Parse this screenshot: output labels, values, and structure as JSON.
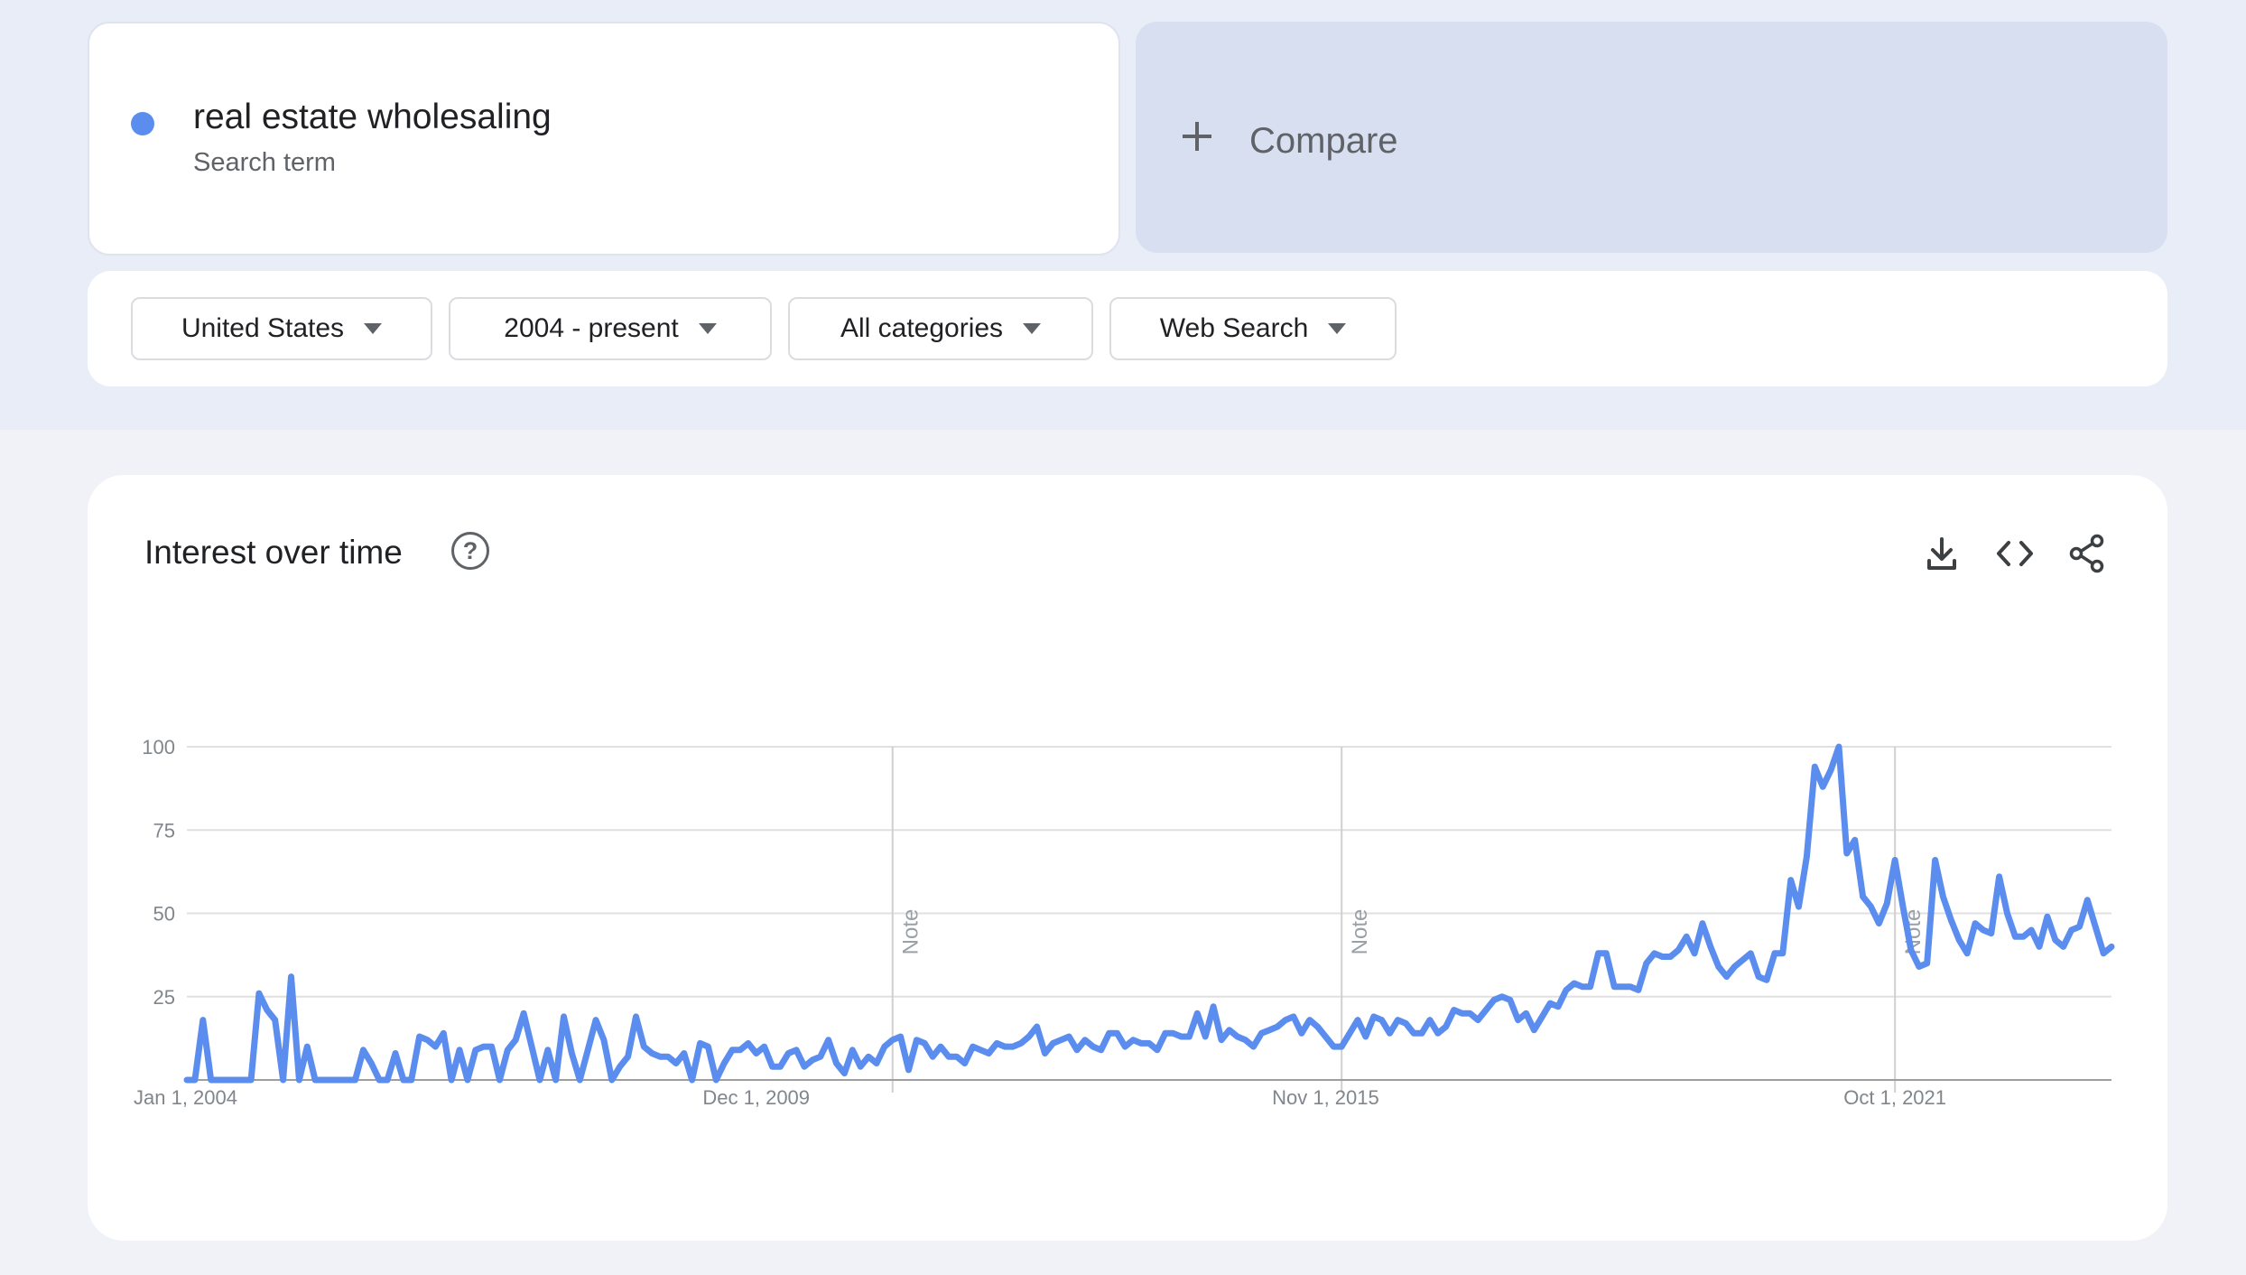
{
  "search_term": {
    "title": "real estate wholesaling",
    "subtitle": "Search term",
    "color": "#5b8def"
  },
  "compare": {
    "label": "Compare",
    "icon": "plus-icon"
  },
  "filters": {
    "region": "United States",
    "time_range": "2004 - present",
    "category": "All categories",
    "property": "Web Search"
  },
  "panel": {
    "title": "Interest over time",
    "icons": [
      "help-icon",
      "download-icon",
      "embed-code-icon",
      "share-icon"
    ]
  },
  "chart_data": {
    "type": "line",
    "x_start": "2004-01",
    "x_ticks": [
      {
        "label": "Jan 1, 2004",
        "month_index": 0
      },
      {
        "label": "Dec 1, 2009",
        "month_index": 71
      },
      {
        "label": "Nov 1, 2015",
        "month_index": 142
      },
      {
        "label": "Oct 1, 2021",
        "month_index": 213
      }
    ],
    "y_ticks": [
      100,
      75,
      50,
      25
    ],
    "ylim": [
      0,
      100
    ],
    "grid": true,
    "notes": [
      {
        "label": "Note",
        "month_index": 88
      },
      {
        "label": "Note",
        "month_index": 144
      },
      {
        "label": "Note",
        "month_index": 213
      }
    ],
    "series": [
      {
        "color": "#5b8def",
        "values": [
          0,
          0,
          18,
          0,
          0,
          0,
          0,
          0,
          0,
          26,
          21,
          18,
          0,
          31,
          0,
          10,
          0,
          0,
          0,
          0,
          0,
          0,
          9,
          5,
          0,
          0,
          8,
          0,
          0,
          13,
          12,
          10,
          14,
          0,
          9,
          0,
          9,
          10,
          10,
          0,
          9,
          12,
          20,
          10,
          0,
          9,
          0,
          19,
          8,
          0,
          9,
          18,
          12,
          0,
          4,
          7,
          19,
          10,
          8,
          7,
          7,
          5,
          8,
          0,
          11,
          10,
          0,
          5,
          9,
          9,
          11,
          8,
          10,
          4,
          4,
          8,
          9,
          4,
          6,
          7,
          12,
          5,
          2,
          9,
          4,
          7,
          5,
          10,
          12,
          13,
          3,
          12,
          11,
          7,
          10,
          7,
          7,
          5,
          10,
          9,
          8,
          11,
          10,
          10,
          11,
          13,
          16,
          8,
          11,
          12,
          13,
          9,
          12,
          10,
          9,
          14,
          14,
          10,
          12,
          11,
          11,
          9,
          14,
          14,
          13,
          13,
          20,
          13,
          22,
          12,
          15,
          13,
          12,
          10,
          14,
          15,
          16,
          18,
          19,
          14,
          18,
          16,
          13,
          10,
          10,
          14,
          18,
          13,
          19,
          18,
          14,
          18,
          17,
          14,
          14,
          18,
          14,
          16,
          21,
          20,
          20,
          18,
          21,
          24,
          25,
          24,
          18,
          20,
          15,
          19,
          23,
          22,
          27,
          29,
          28,
          28,
          38,
          38,
          28,
          28,
          28,
          27,
          35,
          38,
          37,
          37,
          39,
          43,
          38,
          47,
          40,
          34,
          31,
          34,
          36,
          38,
          31,
          30,
          38,
          38,
          60,
          52,
          67,
          94,
          88,
          93,
          100,
          68,
          72,
          55,
          52,
          47,
          53,
          66,
          52,
          39,
          34,
          35,
          66,
          55,
          48,
          42,
          38,
          47,
          45,
          44,
          61,
          50,
          43,
          43,
          45,
          40,
          49,
          42,
          40,
          45,
          46,
          54,
          46,
          38,
          40
        ]
      }
    ]
  }
}
